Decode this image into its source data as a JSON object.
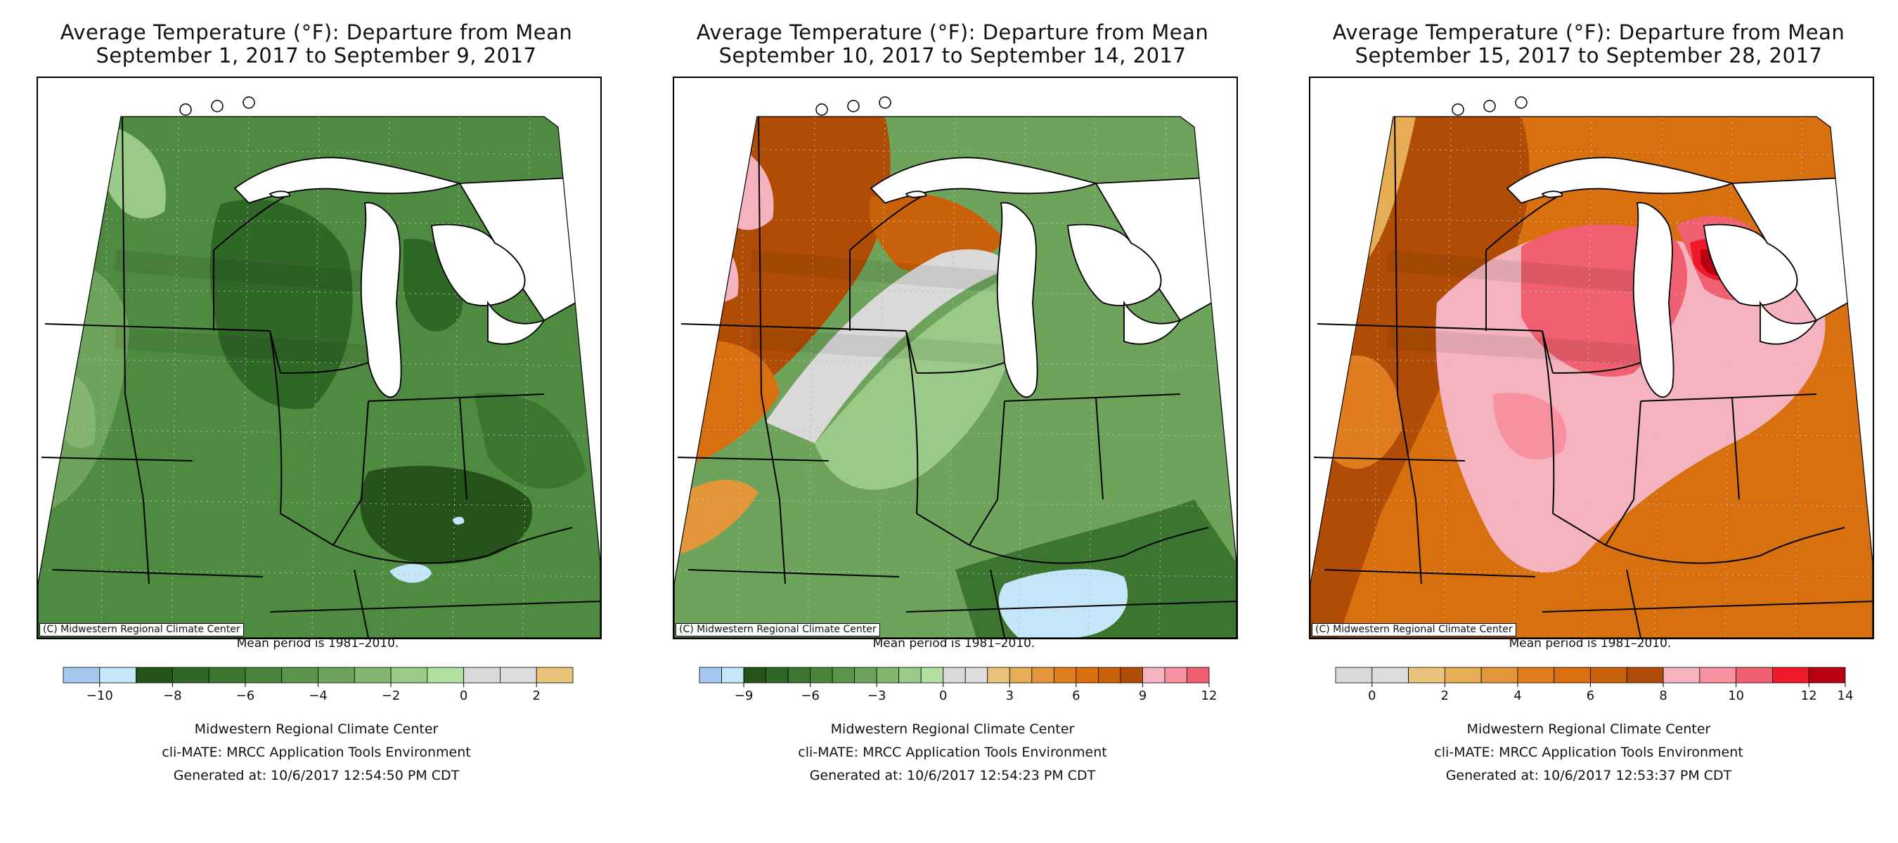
{
  "maps": [
    {
      "title_line1": "Average Temperature (°F): Departure from Mean",
      "title_line2": "September 1, 2017 to September 9, 2017",
      "copyright": "(C) Midwestern Regional Climate Center",
      "mean_note": "Mean period is 1981–2010.",
      "scheme": "cool",
      "base_color": "#4e8a3f",
      "legend": {
        "colors": [
          "#a6c8f0",
          "#c4e6f8",
          "#245219",
          "#2f6726",
          "#3b7530",
          "#4a843b",
          "#5a944a",
          "#6ea35b",
          "#84b570",
          "#9bc987",
          "#b1e0a0",
          "#d9d9d9",
          "#dddddd",
          "#e8c47a"
        ],
        "tick_labels": [
          "−10",
          "−8",
          "−6",
          "−4",
          "−2",
          "0",
          "2"
        ],
        "tick_positions": [
          1,
          3,
          5,
          7,
          9,
          11,
          13
        ]
      },
      "footer": {
        "line1": "Midwestern Regional Climate Center",
        "line2": "cli-MATE: MRCC Application Tools Environment",
        "line3": "Generated at: 10/6/2017 12:54:50 PM CDT"
      }
    },
    {
      "title_line1": "Average Temperature (°F): Departure from Mean",
      "title_line2": "September 10, 2017 to September 14, 2017",
      "copyright": "(C) Midwestern Regional Climate Center",
      "mean_note": "Mean period is 1981–2010.",
      "scheme": "split",
      "base_color": "#6ea35b",
      "legend": {
        "colors": [
          "#a6c8f0",
          "#c4e6f8",
          "#245219",
          "#2f6726",
          "#3b7530",
          "#4a843b",
          "#5a944a",
          "#6ea35b",
          "#84b570",
          "#9bc987",
          "#b1e0a0",
          "#d9d9d9",
          "#dddddd",
          "#e8c47a",
          "#e6ad55",
          "#e3953a",
          "#e07e1f",
          "#d86f10",
          "#c9600a",
          "#b04c05",
          "#f5b3bf",
          "#f7909f",
          "#f06070"
        ],
        "tick_labels": [
          "−9",
          "−6",
          "−3",
          "0",
          "3",
          "6",
          "9",
          "12"
        ],
        "tick_positions": [
          2,
          5,
          8,
          11,
          14,
          17,
          20,
          23
        ]
      },
      "footer": {
        "line1": "Midwestern Regional Climate Center",
        "line2": "cli-MATE: MRCC Application Tools Environment",
        "line3": "Generated at: 10/6/2017 12:54:23 PM CDT"
      }
    },
    {
      "title_line1": "Average Temperature (°F): Departure from Mean",
      "title_line2": "September 15, 2017 to September 28, 2017",
      "copyright": "(C) Midwestern Regional Climate Center",
      "mean_note": "Mean period is 1981–2010.",
      "scheme": "warm",
      "base_color": "#d9700f",
      "legend": {
        "colors": [
          "#d9d9d9",
          "#dddddd",
          "#e8c47a",
          "#e6ad55",
          "#e3953a",
          "#e07e1f",
          "#d86f10",
          "#c9600a",
          "#b04c05",
          "#f5b3bf",
          "#f7909f",
          "#f06070",
          "#ee1a2a",
          "#b80010"
        ],
        "tick_labels": [
          "0",
          "2",
          "4",
          "6",
          "8",
          "10",
          "12",
          "14"
        ],
        "tick_positions": [
          1,
          3,
          5,
          7,
          9,
          11,
          13,
          14
        ]
      },
      "footer": {
        "line1": "Midwestern Regional Climate Center",
        "line2": "cli-MATE: MRCC Application Tools Environment",
        "line3": "Generated at: 10/6/2017 12:53:37 PM CDT"
      }
    }
  ]
}
